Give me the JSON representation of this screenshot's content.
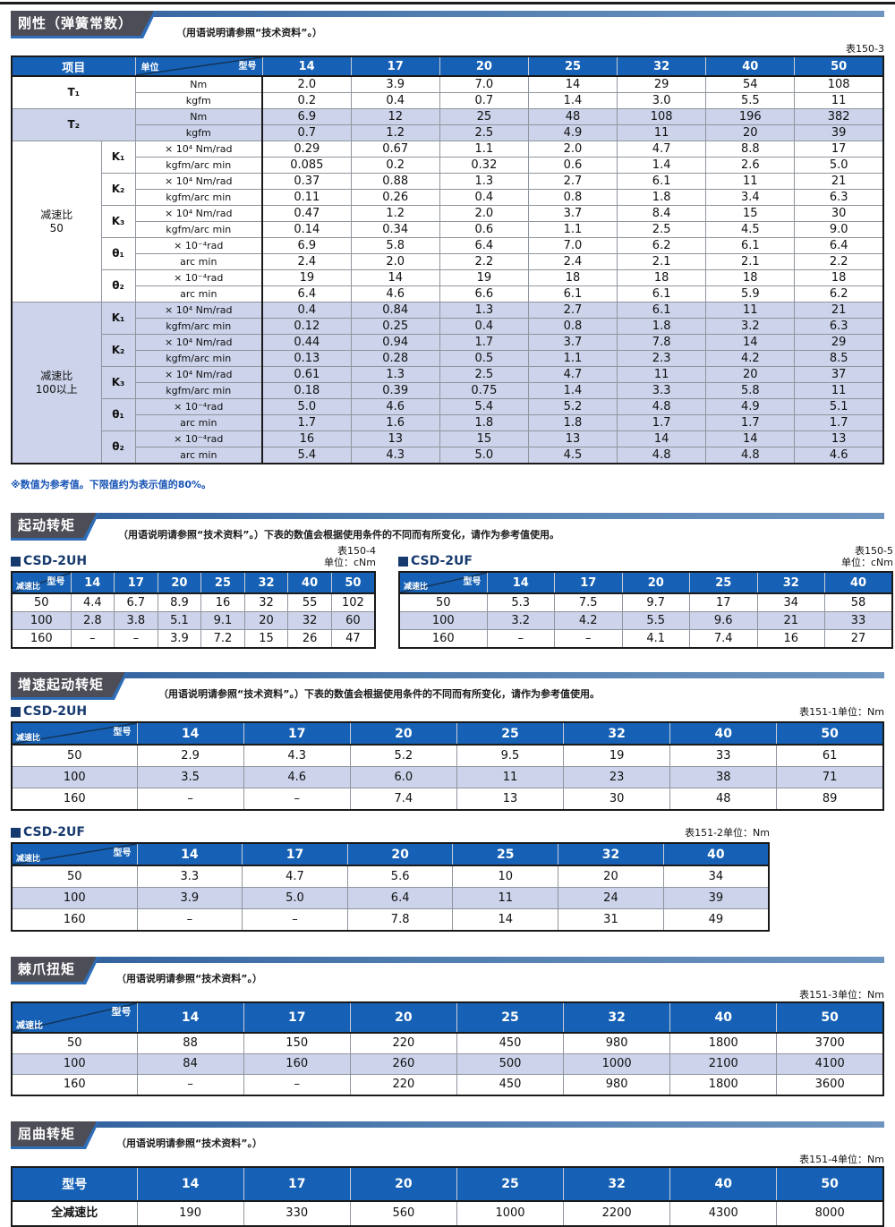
{
  "labels": {
    "model": "型号",
    "ratio": "减速比",
    "unit": "单位",
    "item": "项目"
  },
  "stiffness": {
    "title": "刚性（弹簧常数）",
    "note": "（用语说明请参照“技术资料”。）",
    "table_no": "表150-3",
    "footnote": "※数值为参考值。下限值约为表示值的80%。",
    "table": {
      "models": [
        "14",
        "17",
        "20",
        "25",
        "32",
        "40",
        "50"
      ],
      "blocks": [
        {
          "group": null,
          "shaded": false,
          "items": [
            {
              "name": "T₁",
              "rows": [
                {
                  "unit": "Nm",
                  "values": [
                    "2.0",
                    "3.9",
                    "7.0",
                    "14",
                    "29",
                    "54",
                    "108"
                  ]
                },
                {
                  "unit": "kgfm",
                  "values": [
                    "0.2",
                    "0.4",
                    "0.7",
                    "1.4",
                    "3.0",
                    "5.5",
                    "11"
                  ]
                }
              ]
            }
          ]
        },
        {
          "group": null,
          "shaded": true,
          "items": [
            {
              "name": "T₂",
              "rows": [
                {
                  "unit": "Nm",
                  "values": [
                    "6.9",
                    "12",
                    "25",
                    "48",
                    "108",
                    "196",
                    "382"
                  ]
                },
                {
                  "unit": "kgfm",
                  "values": [
                    "0.7",
                    "1.2",
                    "2.5",
                    "4.9",
                    "11",
                    "20",
                    "39"
                  ]
                }
              ]
            }
          ]
        },
        {
          "group": "减速比\n50",
          "shaded": false,
          "items": [
            {
              "name": "K₁",
              "rows": [
                {
                  "unit": "× 10⁴ Nm/rad",
                  "values": [
                    "0.29",
                    "0.67",
                    "1.1",
                    "2.0",
                    "4.7",
                    "8.8",
                    "17"
                  ]
                },
                {
                  "unit": "kgfm/arc min",
                  "values": [
                    "0.085",
                    "0.2",
                    "0.32",
                    "0.6",
                    "1.4",
                    "2.6",
                    "5.0"
                  ]
                }
              ]
            },
            {
              "name": "K₂",
              "rows": [
                {
                  "unit": "× 10⁴ Nm/rad",
                  "values": [
                    "0.37",
                    "0.88",
                    "1.3",
                    "2.7",
                    "6.1",
                    "11",
                    "21"
                  ]
                },
                {
                  "unit": "kgfm/arc min",
                  "values": [
                    "0.11",
                    "0.26",
                    "0.4",
                    "0.8",
                    "1.8",
                    "3.4",
                    "6.3"
                  ]
                }
              ]
            },
            {
              "name": "K₃",
              "rows": [
                {
                  "unit": "× 10⁴ Nm/rad",
                  "values": [
                    "0.47",
                    "1.2",
                    "2.0",
                    "3.7",
                    "8.4",
                    "15",
                    "30"
                  ]
                },
                {
                  "unit": "kgfm/arc min",
                  "values": [
                    "0.14",
                    "0.34",
                    "0.6",
                    "1.1",
                    "2.5",
                    "4.5",
                    "9.0"
                  ]
                }
              ]
            },
            {
              "name": "θ₁",
              "rows": [
                {
                  "unit": "× 10⁻⁴rad",
                  "values": [
                    "6.9",
                    "5.8",
                    "6.4",
                    "7.0",
                    "6.2",
                    "6.1",
                    "6.4"
                  ]
                },
                {
                  "unit": "arc min",
                  "values": [
                    "2.4",
                    "2.0",
                    "2.2",
                    "2.4",
                    "2.1",
                    "2.1",
                    "2.2"
                  ]
                }
              ]
            },
            {
              "name": "θ₂",
              "rows": [
                {
                  "unit": "× 10⁻⁴rad",
                  "values": [
                    "19",
                    "14",
                    "19",
                    "18",
                    "18",
                    "18",
                    "18"
                  ]
                },
                {
                  "unit": "arc min",
                  "values": [
                    "6.4",
                    "4.6",
                    "6.6",
                    "6.1",
                    "6.1",
                    "5.9",
                    "6.2"
                  ]
                }
              ]
            }
          ]
        },
        {
          "group": "减速比\n100以上",
          "shaded": true,
          "items": [
            {
              "name": "K₁",
              "rows": [
                {
                  "unit": "× 10⁴ Nm/rad",
                  "values": [
                    "0.4",
                    "0.84",
                    "1.3",
                    "2.7",
                    "6.1",
                    "11",
                    "21"
                  ]
                },
                {
                  "unit": "kgfm/arc min",
                  "values": [
                    "0.12",
                    "0.25",
                    "0.4",
                    "0.8",
                    "1.8",
                    "3.2",
                    "6.3"
                  ]
                }
              ]
            },
            {
              "name": "K₂",
              "rows": [
                {
                  "unit": "× 10⁴ Nm/rad",
                  "values": [
                    "0.44",
                    "0.94",
                    "1.7",
                    "3.7",
                    "7.8",
                    "14",
                    "29"
                  ]
                },
                {
                  "unit": "kgfm/arc min",
                  "values": [
                    "0.13",
                    "0.28",
                    "0.5",
                    "1.1",
                    "2.3",
                    "4.2",
                    "8.5"
                  ]
                }
              ]
            },
            {
              "name": "K₃",
              "rows": [
                {
                  "unit": "× 10⁴ Nm/rad",
                  "values": [
                    "0.61",
                    "1.3",
                    "2.5",
                    "4.7",
                    "11",
                    "20",
                    "37"
                  ]
                },
                {
                  "unit": "kgfm/arc min",
                  "values": [
                    "0.18",
                    "0.39",
                    "0.75",
                    "1.4",
                    "3.3",
                    "5.8",
                    "11"
                  ]
                }
              ]
            },
            {
              "name": "θ₁",
              "rows": [
                {
                  "unit": "× 10⁻⁴rad",
                  "values": [
                    "5.0",
                    "4.6",
                    "5.4",
                    "5.2",
                    "4.8",
                    "4.9",
                    "5.1"
                  ]
                },
                {
                  "unit": "arc min",
                  "values": [
                    "1.7",
                    "1.6",
                    "1.8",
                    "1.8",
                    "1.7",
                    "1.7",
                    "1.7"
                  ]
                }
              ]
            },
            {
              "name": "θ₂",
              "rows": [
                {
                  "unit": "× 10⁻⁴rad",
                  "values": [
                    "16",
                    "13",
                    "15",
                    "13",
                    "14",
                    "14",
                    "13"
                  ]
                },
                {
                  "unit": "arc min",
                  "values": [
                    "5.4",
                    "4.3",
                    "5.0",
                    "4.5",
                    "4.8",
                    "4.8",
                    "4.6"
                  ]
                }
              ]
            }
          ]
        }
      ]
    }
  },
  "starting": {
    "title": "起动转矩",
    "note": "（用语说明请参照“技术资料”。）下表的数值会根据使用条件的不同而有所变化，请作为参考值使用。",
    "tables": [
      {
        "name": "CSD-2UH",
        "table_no": "表150-4",
        "unit_label": "单位：cNm",
        "models": [
          "14",
          "17",
          "20",
          "25",
          "32",
          "40",
          "50"
        ],
        "rows": [
          {
            "ratio": "50",
            "values": [
              "4.4",
              "6.7",
              "8.9",
              "16",
              "32",
              "55",
              "102"
            ]
          },
          {
            "ratio": "100",
            "values": [
              "2.8",
              "3.8",
              "5.1",
              "9.1",
              "20",
              "32",
              "60"
            ]
          },
          {
            "ratio": "160",
            "values": [
              "–",
              "–",
              "3.9",
              "7.2",
              "15",
              "26",
              "47"
            ]
          }
        ]
      },
      {
        "name": "CSD-2UF",
        "table_no": "表150-5",
        "unit_label": "单位：cNm",
        "models": [
          "14",
          "17",
          "20",
          "25",
          "32",
          "40"
        ],
        "rows": [
          {
            "ratio": "50",
            "values": [
              "5.3",
              "7.5",
              "9.7",
              "17",
              "34",
              "58"
            ]
          },
          {
            "ratio": "100",
            "values": [
              "3.2",
              "4.2",
              "5.5",
              "9.6",
              "21",
              "33"
            ]
          },
          {
            "ratio": "160",
            "values": [
              "–",
              "–",
              "4.1",
              "7.4",
              "16",
              "27"
            ]
          }
        ]
      }
    ]
  },
  "overdrive": {
    "title": "增速起动转矩",
    "note": "（用语说明请参照“技术资料”。）下表的数值会根据使用条件的不同而有所变化，请作为参考值使用。",
    "tables": [
      {
        "name": "CSD-2UH",
        "table_no": "表151-1",
        "unit_label": "单位：Nm",
        "models": [
          "14",
          "17",
          "20",
          "25",
          "32",
          "40",
          "50"
        ],
        "rows": [
          {
            "ratio": "50",
            "values": [
              "2.9",
              "4.3",
              "5.2",
              "9.5",
              "19",
              "33",
              "61"
            ]
          },
          {
            "ratio": "100",
            "values": [
              "3.5",
              "4.6",
              "6.0",
              "11",
              "23",
              "38",
              "71"
            ]
          },
          {
            "ratio": "160",
            "values": [
              "–",
              "–",
              "7.4",
              "13",
              "30",
              "48",
              "89"
            ]
          }
        ]
      },
      {
        "name": "CSD-2UF",
        "table_no": "表151-2",
        "unit_label": "单位：Nm",
        "models": [
          "14",
          "17",
          "20",
          "25",
          "32",
          "40"
        ],
        "rows": [
          {
            "ratio": "50",
            "values": [
              "3.3",
              "4.7",
              "5.6",
              "10",
              "20",
              "34"
            ]
          },
          {
            "ratio": "100",
            "values": [
              "3.9",
              "5.0",
              "6.4",
              "11",
              "24",
              "39"
            ]
          },
          {
            "ratio": "160",
            "values": [
              "–",
              "–",
              "7.8",
              "14",
              "31",
              "49"
            ]
          }
        ]
      }
    ]
  },
  "ratchet": {
    "title": "棘爪扭矩",
    "note": "（用语说明请参照“技术资料”。）",
    "table": {
      "table_no": "表151-3",
      "unit_label": "单位：Nm",
      "models": [
        "14",
        "17",
        "20",
        "25",
        "32",
        "40",
        "50"
      ],
      "rows": [
        {
          "ratio": "50",
          "values": [
            "88",
            "150",
            "220",
            "450",
            "980",
            "1800",
            "3700"
          ]
        },
        {
          "ratio": "100",
          "values": [
            "84",
            "160",
            "260",
            "500",
            "1000",
            "2100",
            "4100"
          ]
        },
        {
          "ratio": "160",
          "values": [
            "–",
            "–",
            "220",
            "450",
            "980",
            "1800",
            "3600"
          ]
        }
      ]
    }
  },
  "buckling": {
    "title": "屈曲转矩",
    "note": "（用语说明请参照“技术资料”。）",
    "table": {
      "table_no": "表151-4",
      "unit_label": "单位：Nm",
      "models": [
        "14",
        "17",
        "20",
        "25",
        "32",
        "40",
        "50"
      ],
      "row_label": "全减速比",
      "values": [
        "190",
        "330",
        "560",
        "1000",
        "2200",
        "4300",
        "8000"
      ]
    }
  }
}
